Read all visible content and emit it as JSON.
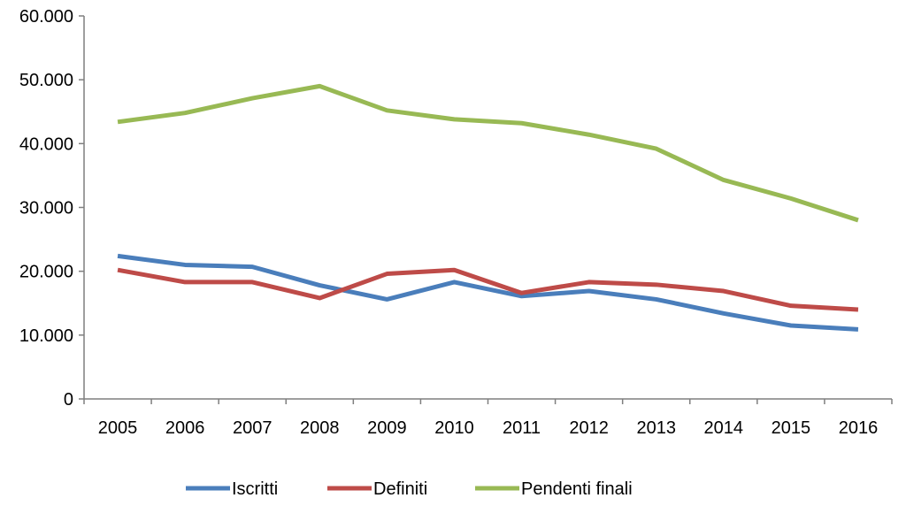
{
  "chart_data": {
    "type": "line",
    "categories": [
      "2005",
      "2006",
      "2007",
      "2008",
      "2009",
      "2010",
      "2011",
      "2012",
      "2013",
      "2014",
      "2015",
      "2016"
    ],
    "series": [
      {
        "name": "Iscritti",
        "color": "#4a7ebb",
        "values": [
          22400,
          21000,
          20700,
          17800,
          15600,
          18300,
          16100,
          16900,
          15600,
          13400,
          11500,
          10900
        ]
      },
      {
        "name": "Definiti",
        "color": "#be4b48",
        "values": [
          20200,
          18300,
          18300,
          15800,
          19600,
          20200,
          16600,
          18300,
          17900,
          16900,
          14600,
          14000
        ]
      },
      {
        "name": "Pendenti finali",
        "color": "#98b954",
        "values": [
          43400,
          44800,
          47100,
          49000,
          45200,
          43800,
          43200,
          41400,
          39200,
          34300,
          31400,
          28000
        ]
      }
    ],
    "y_ticks": [
      "0",
      "10.000",
      "20.000",
      "30.000",
      "40.000",
      "50.000",
      "60.000"
    ],
    "ylim": [
      0,
      60000
    ],
    "grid": false,
    "legend_position": "bottom"
  }
}
